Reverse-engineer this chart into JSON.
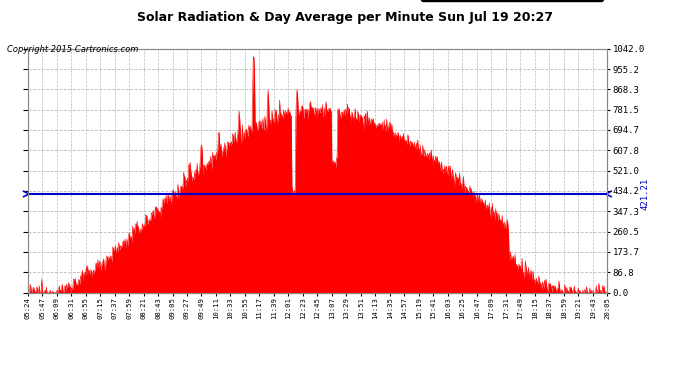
{
  "title": "Solar Radiation & Day Average per Minute Sun Jul 19 20:27",
  "copyright": "Copyright 2015 Cartronics.com",
  "median_value": 421.21,
  "y_max": 1042.0,
  "y_ticks": [
    0.0,
    86.8,
    173.7,
    260.5,
    347.3,
    434.2,
    521.0,
    607.8,
    694.7,
    781.5,
    868.3,
    955.2,
    1042.0
  ],
  "background_color": "#ffffff",
  "plot_bg_color": "#ffffff",
  "grid_color": "#bbbbbb",
  "fill_color": "#ff0000",
  "median_color": "#0000cc",
  "x_tick_labels": [
    "05:24",
    "05:47",
    "06:09",
    "06:31",
    "06:55",
    "07:15",
    "07:37",
    "07:59",
    "08:21",
    "08:43",
    "09:05",
    "09:27",
    "09:49",
    "10:11",
    "10:33",
    "10:55",
    "11:17",
    "11:39",
    "12:01",
    "12:23",
    "12:45",
    "13:07",
    "13:29",
    "13:51",
    "14:13",
    "14:35",
    "14:57",
    "15:19",
    "15:41",
    "16:03",
    "16:25",
    "16:47",
    "17:09",
    "17:31",
    "17:49",
    "18:15",
    "18:37",
    "18:59",
    "19:21",
    "19:43",
    "20:05"
  ],
  "n_points": 900,
  "seed": 12345
}
